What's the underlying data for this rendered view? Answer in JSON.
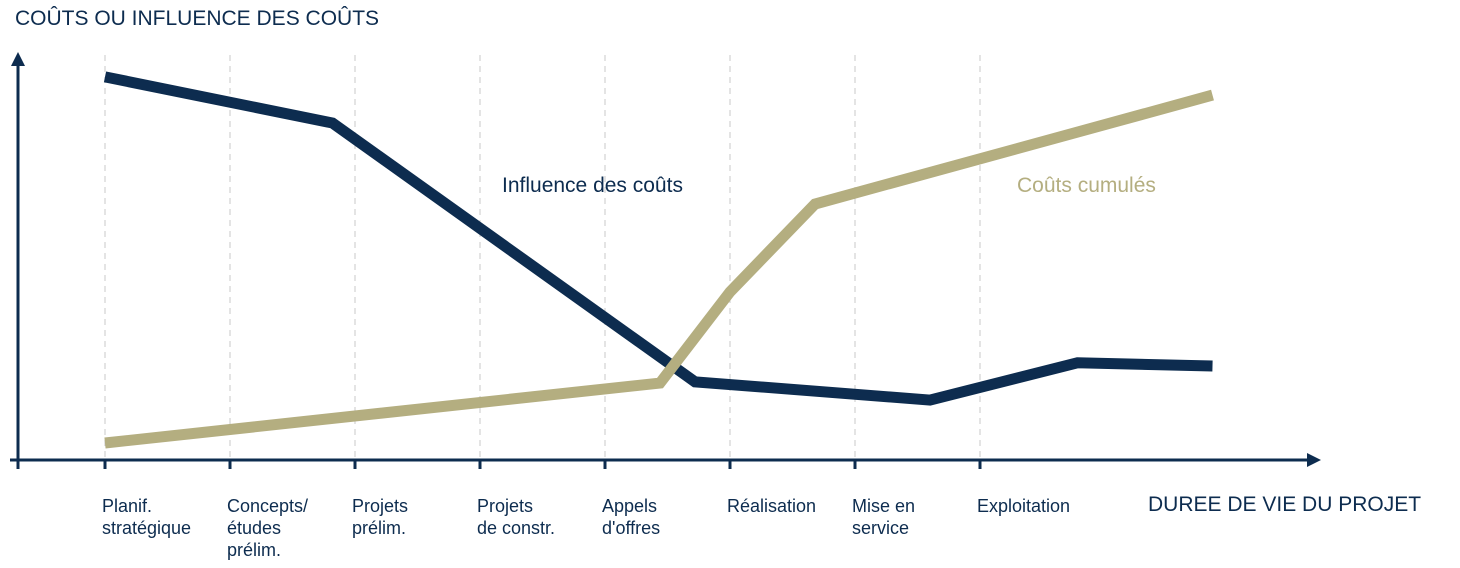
{
  "chart_data": {
    "type": "line",
    "y_label": "COÛTS OU INFLUENCE DES COÛTS",
    "x_label": "DUREE DE VIE DU PROJET",
    "categories": [
      "Planif.\nstratégique",
      "Concepts/\nétudes\nprélim.",
      "Projets\nprélim.",
      "Projets\nde constr.",
      "Appels\nd'offres",
      "Réalisation",
      "Mise en\nservice",
      "Exploitation"
    ],
    "xlim": [
      -0.7,
      9.7
    ],
    "ylim": [
      0,
      100
    ],
    "grid": true,
    "series": [
      {
        "name": "Influence des coûts",
        "color": "#0d2c4f",
        "x": [
          0,
          1.82,
          4.72,
          6.6,
          7.78,
          8.86
        ],
        "values": [
          94.6,
          83.2,
          19.3,
          14.8,
          24,
          23.2
        ]
      },
      {
        "name": "Coûts cumulés",
        "color": "#b4ae80",
        "x": [
          0,
          4.44,
          5,
          5.68,
          8.86
        ],
        "values": [
          4.2,
          19,
          41.5,
          63.2,
          90.1
        ]
      }
    ]
  }
}
